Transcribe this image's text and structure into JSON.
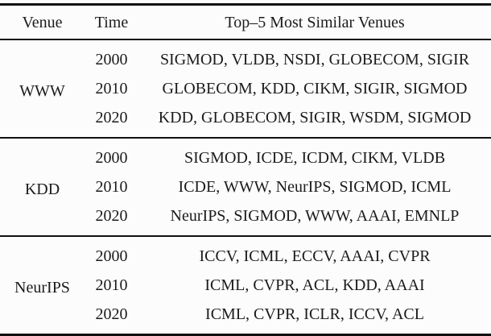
{
  "table": {
    "headers": {
      "venue": "Venue",
      "time": "Time",
      "similar": "Top–5 Most Similar Venues"
    },
    "sections": [
      {
        "venue": "WWW",
        "rows": [
          {
            "time": "2000",
            "venues": [
              "SIGMOD",
              "VLDB",
              "NSDI",
              "GLOBECOM",
              "SIGIR"
            ]
          },
          {
            "time": "2010",
            "venues": [
              "GLOBECOM",
              "KDD",
              "CIKM",
              "SIGIR",
              "SIGMOD"
            ]
          },
          {
            "time": "2020",
            "venues": [
              "KDD",
              "GLOBECOM",
              "SIGIR",
              "WSDM",
              "SIGMOD"
            ]
          }
        ]
      },
      {
        "venue": "KDD",
        "rows": [
          {
            "time": "2000",
            "venues": [
              "SIGMOD",
              "ICDE",
              "ICDM",
              "CIKM",
              "VLDB"
            ]
          },
          {
            "time": "2010",
            "venues": [
              "ICDE",
              "WWW",
              "NeurIPS",
              "SIGMOD",
              "ICML"
            ]
          },
          {
            "time": "2020",
            "venues": [
              "NeurIPS",
              "SIGMOD",
              "WWW",
              "AAAI",
              "EMNLP"
            ]
          }
        ]
      },
      {
        "venue": "NeurIPS",
        "rows": [
          {
            "time": "2000",
            "venues": [
              "ICCV",
              "ICML",
              "ECCV",
              "AAAI",
              "CVPR"
            ]
          },
          {
            "time": "2010",
            "venues": [
              "ICML",
              "CVPR",
              "ACL",
              "KDD",
              "AAAI"
            ]
          },
          {
            "time": "2020",
            "venues": [
              "ICML",
              "CVPR",
              "ICLR",
              "ICCV",
              "ACL"
            ]
          }
        ]
      }
    ],
    "colors": {
      "text": "#1b1b1b",
      "rule": "#101010",
      "background": "#fcfcfc"
    }
  }
}
